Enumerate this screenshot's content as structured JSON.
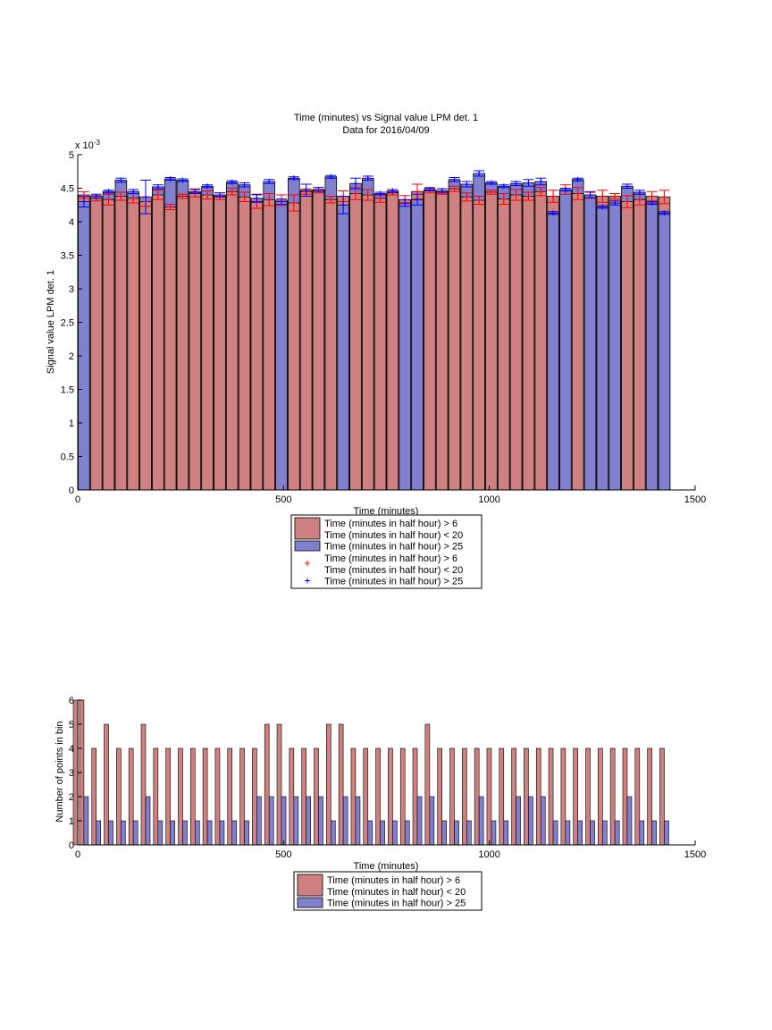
{
  "chart_data": [
    {
      "type": "bar",
      "title": "Time (minutes) vs Signal value LPM det. 1",
      "subtitle": "Data for 2016/04/09",
      "xlabel": "Time (minutes)",
      "ylabel": "Signal value LPM det. 1",
      "exponent_label": "x 10",
      "exponent_power": "-3",
      "xlim": [
        0,
        1500
      ],
      "ylim": [
        0,
        5
      ],
      "xticks": [
        "0",
        "500",
        "1000",
        "1500"
      ],
      "yticks": [
        "0",
        "0.5",
        "1",
        "1.5",
        "2",
        "2.5",
        "3",
        "3.5",
        "4",
        "4.5",
        "5"
      ],
      "grid": false,
      "legend_position": "below",
      "colors": {
        "red_bar": "#cf8080",
        "blue_bar": "#8080cf",
        "red_err": "#ff0000",
        "blue_err": "#0000ff"
      },
      "x": [
        15,
        45,
        75,
        105,
        135,
        165,
        195,
        225,
        255,
        285,
        315,
        345,
        375,
        405,
        435,
        465,
        495,
        525,
        555,
        585,
        615,
        645,
        675,
        705,
        735,
        765,
        795,
        825,
        855,
        885,
        915,
        945,
        975,
        1005,
        1035,
        1065,
        1095,
        1125,
        1155,
        1185,
        1215,
        1245,
        1275,
        1305,
        1335,
        1365,
        1395,
        1425
      ],
      "series": [
        {
          "name": "Time (minutes in half hour) > 6\nTime (minutes in half hour) < 20",
          "values": [
            4.4,
            4.35,
            4.33,
            4.38,
            4.35,
            4.3,
            4.4,
            4.22,
            4.38,
            4.43,
            4.4,
            4.38,
            4.45,
            4.37,
            4.3,
            4.33,
            4.32,
            4.28,
            4.45,
            4.47,
            4.33,
            4.38,
            4.42,
            4.4,
            4.35,
            4.43,
            4.33,
            4.45,
            4.47,
            4.45,
            4.49,
            4.37,
            4.32,
            4.44,
            4.34,
            4.4,
            4.38,
            4.45,
            4.38,
            4.48,
            4.42,
            4.4,
            4.38,
            4.38,
            4.3,
            4.33,
            4.38,
            4.37
          ],
          "errors": [
            0.05,
            0.04,
            0.08,
            0.06,
            0.07,
            0.07,
            0.07,
            0.04,
            0.03,
            0.06,
            0.06,
            0.05,
            0.05,
            0.07,
            0.1,
            0.09,
            0.08,
            0.12,
            0.04,
            0.04,
            0.05,
            0.08,
            0.09,
            0.08,
            0.06,
            0.03,
            0.06,
            0.11,
            0.04,
            0.04,
            0.04,
            0.06,
            0.06,
            0.03,
            0.08,
            0.08,
            0.06,
            0.06,
            0.09,
            0.07,
            0.09,
            0.05,
            0.09,
            0.04,
            0.09,
            0.08,
            0.07,
            0.1
          ],
          "color": "#cf8080"
        },
        {
          "name": "Time (minutes in half hour) > 25",
          "values": [
            4.3,
            4.38,
            4.45,
            4.62,
            4.45,
            4.37,
            4.52,
            4.64,
            4.62,
            4.45,
            4.53,
            4.4,
            4.59,
            4.55,
            4.35,
            4.6,
            4.3,
            4.65,
            4.47,
            4.48,
            4.67,
            4.25,
            4.57,
            4.65,
            4.42,
            4.46,
            4.28,
            4.33,
            4.48,
            4.46,
            4.63,
            4.56,
            4.72,
            4.58,
            4.53,
            4.57,
            4.58,
            4.6,
            4.13,
            4.48,
            4.63,
            4.4,
            4.22,
            4.28,
            4.53,
            4.44,
            4.28,
            4.13
          ],
          "errors": [
            0.08,
            0.03,
            0.02,
            0.03,
            0.03,
            0.25,
            0.03,
            0.02,
            0.02,
            0.03,
            0.02,
            0.03,
            0.02,
            0.03,
            0.06,
            0.03,
            0.04,
            0.02,
            0.09,
            0.03,
            0.02,
            0.13,
            0.08,
            0.03,
            0.02,
            0.02,
            0.05,
            0.08,
            0.02,
            0.03,
            0.03,
            0.04,
            0.04,
            0.02,
            0.02,
            0.03,
            0.05,
            0.05,
            0.02,
            0.02,
            0.02,
            0.04,
            0.02,
            0.03,
            0.03,
            0.03,
            0.02,
            0.02
          ],
          "color": "#8080cf"
        }
      ],
      "legend": [
        {
          "line1": "Time (minutes in half hour) > 6",
          "line2": "Time (minutes in half hour) < 20",
          "kind": "bar",
          "color": "#cf8080"
        },
        {
          "line1": "Time (minutes in half hour) > 25",
          "line2": "",
          "kind": "bar",
          "color": "#8080cf"
        },
        {
          "line1": "Time (minutes in half hour) > 6",
          "line2": "Time (minutes in half hour) < 20",
          "kind": "marker",
          "color": "#ff0000"
        },
        {
          "line1": "Time (minutes in half hour) > 25",
          "line2": "",
          "kind": "marker",
          "color": "#0000ff"
        }
      ]
    },
    {
      "type": "bar",
      "xlabel": "Time (minutes)",
      "ylabel": "Number of points in bin",
      "xlim": [
        0,
        1500
      ],
      "ylim": [
        0,
        6
      ],
      "xticks": [
        "0",
        "500",
        "1000",
        "1500"
      ],
      "yticks": [
        "0",
        "1",
        "2",
        "3",
        "4",
        "5",
        "6"
      ],
      "grid": false,
      "legend_position": "below",
      "x": [
        0,
        15,
        45,
        75,
        105,
        135,
        165,
        195,
        225,
        255,
        285,
        315,
        345,
        375,
        405,
        435,
        465,
        495,
        525,
        555,
        585,
        615,
        645,
        675,
        705,
        735,
        765,
        795,
        825,
        855,
        885,
        915,
        945,
        975,
        1005,
        1035,
        1065,
        1095,
        1125,
        1155,
        1185,
        1215,
        1245,
        1275,
        1305,
        1335,
        1365,
        1395,
        1425
      ],
      "series": [
        {
          "name": "Time (minutes in half hour) > 6\nTime (minutes in half hour) < 20",
          "values": [
            6,
            6,
            4,
            5,
            4,
            4,
            5,
            4,
            4,
            4,
            4,
            4,
            4,
            4,
            4,
            4,
            5,
            5,
            4,
            4,
            4,
            5,
            5,
            4,
            4,
            4,
            4,
            4,
            4,
            5,
            4,
            4,
            4,
            4,
            4,
            4,
            4,
            4,
            4,
            4,
            4,
            4,
            4,
            4,
            4,
            4,
            4,
            4,
            4
          ],
          "color": "#cf8080"
        },
        {
          "name": "Time (minutes in half hour) > 25",
          "values": [
            0,
            2,
            1,
            1,
            1,
            1,
            2,
            1,
            1,
            1,
            1,
            1,
            1,
            1,
            1,
            2,
            2,
            2,
            2,
            2,
            2,
            1,
            2,
            2,
            1,
            1,
            1,
            1,
            2,
            2,
            1,
            1,
            1,
            2,
            1,
            1,
            2,
            2,
            2,
            1,
            1,
            1,
            1,
            1,
            1,
            2,
            1,
            1,
            1
          ],
          "color": "#8080cf"
        }
      ],
      "legend": [
        {
          "line1": "Time (minutes in half hour) > 6",
          "line2": "Time (minutes in half hour) < 20",
          "kind": "bar",
          "color": "#cf8080"
        },
        {
          "line1": "Time (minutes in half hour) > 25",
          "line2": "",
          "kind": "bar",
          "color": "#8080cf"
        }
      ]
    }
  ]
}
